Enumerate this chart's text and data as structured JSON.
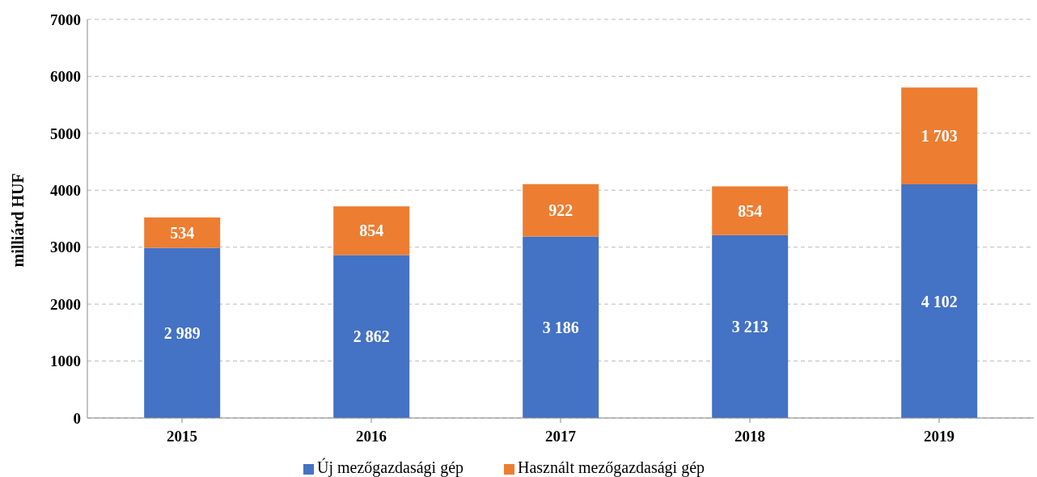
{
  "chart_data": {
    "type": "bar",
    "stacked": true,
    "ylabel": "milliárd HUF",
    "categories": [
      "2015",
      "2016",
      "2017",
      "2018",
      "2019"
    ],
    "series": [
      {
        "name": "Új mezőgazdasági gép",
        "color": "#4472c4",
        "values": [
          2989,
          2862,
          3186,
          3213,
          4102
        ],
        "value_labels": [
          "2 989",
          "2 862",
          "3 186",
          "3 213",
          "4 102"
        ]
      },
      {
        "name": "Használt mezőgazdasági gép",
        "color": "#ed7d31",
        "values": [
          534,
          854,
          922,
          854,
          1703
        ],
        "value_labels": [
          "534",
          "854",
          "922",
          "854",
          "1 703"
        ]
      }
    ],
    "ylim": [
      0,
      7000
    ],
    "yticks": [
      0,
      1000,
      2000,
      3000,
      4000,
      5000,
      6000,
      7000
    ],
    "grid": "y",
    "legend": "bottom"
  }
}
